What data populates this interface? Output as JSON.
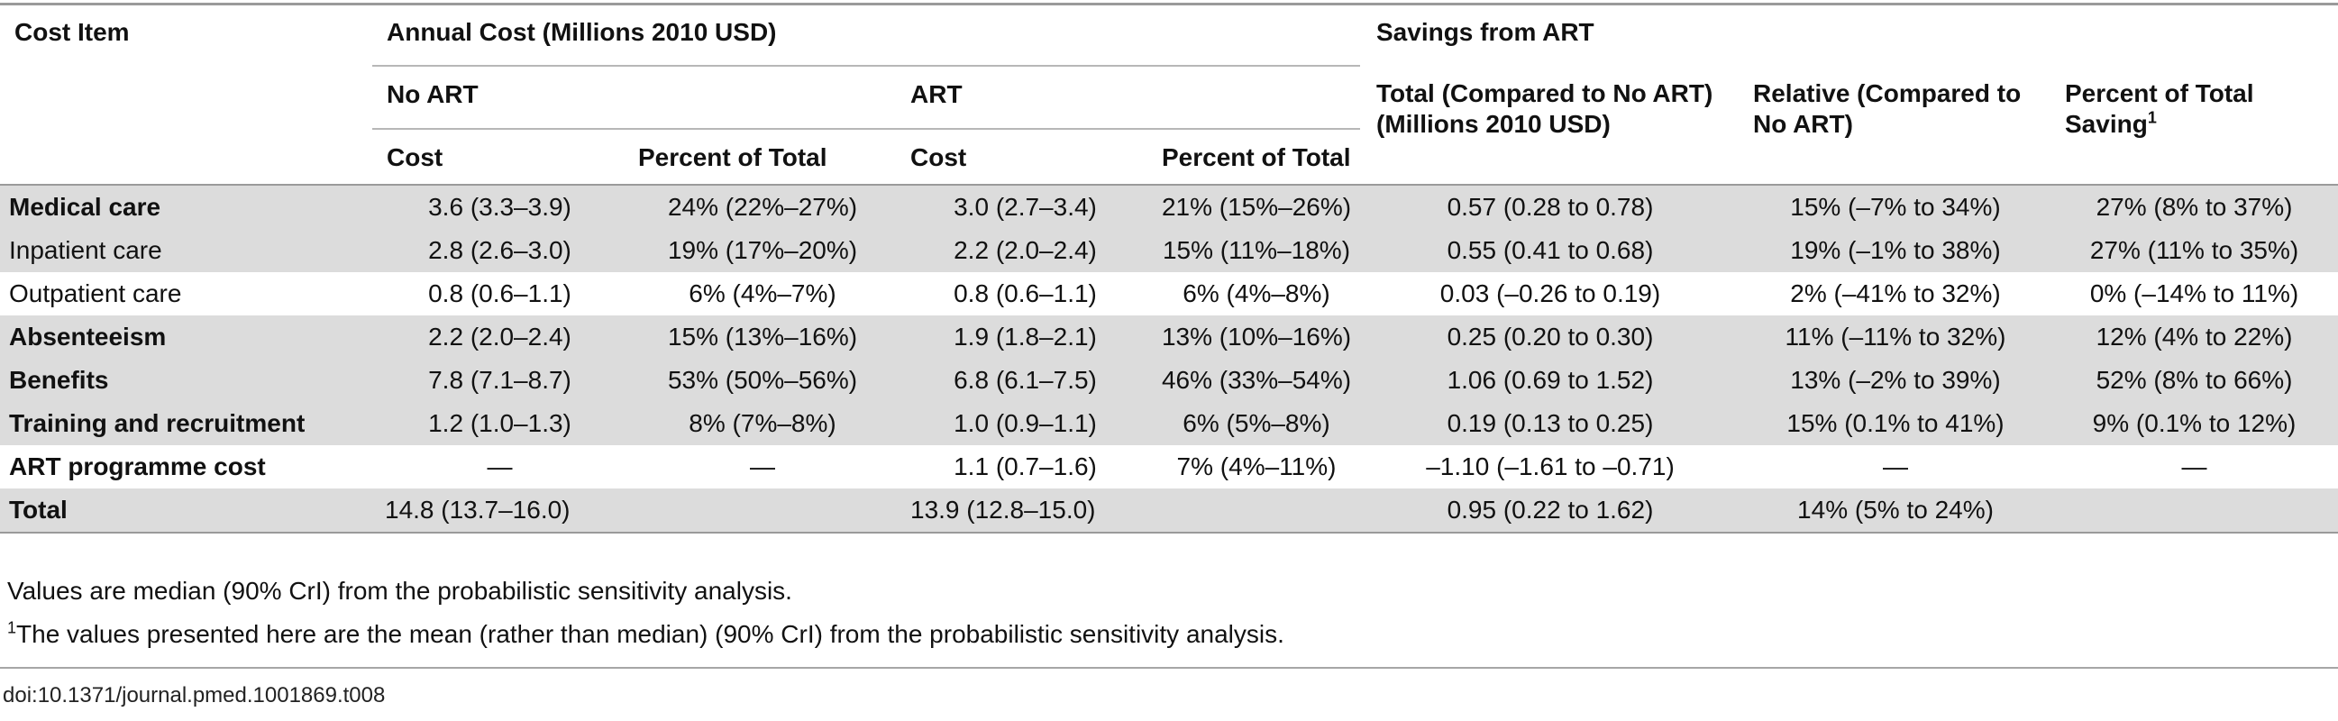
{
  "table": {
    "headers": {
      "cost_item": "Cost Item",
      "annual_cost": "Annual Cost (Millions 2010 USD)",
      "savings": "Savings from ART",
      "no_art": "No ART",
      "art": "ART",
      "cost": "Cost",
      "percent_of_total": "Percent of Total",
      "total_savings": "Total (Compared to No ART) (Millions 2010 USD)",
      "relative": "Relative (Compared to No ART)",
      "percent_of_total_saving": "Percent of Total Saving",
      "footnote_mark": "1"
    },
    "rows": [
      {
        "item": "Medical care",
        "bold": true,
        "no_art_cost": "3.6 (3.3–3.9)",
        "no_art_pct": "24% (22%–27%)",
        "art_cost": "3.0 (2.7–3.4)",
        "art_pct": "21% (15%–26%)",
        "total": "0.57 (0.28 to 0.78)",
        "relative": "15% (–7% to 34%)",
        "pct_saving": "27% (8% to 37%)"
      },
      {
        "item": "Inpatient care",
        "bold": false,
        "no_art_cost": "2.8 (2.6–3.0)",
        "no_art_pct": "19% (17%–20%)",
        "art_cost": "2.2 (2.0–2.4)",
        "art_pct": "15% (11%–18%)",
        "total": "0.55 (0.41 to 0.68)",
        "relative": "19% (–1% to 38%)",
        "pct_saving": "27% (11% to 35%)"
      },
      {
        "item": "Outpatient care",
        "bold": false,
        "no_art_cost": "0.8 (0.6–1.1)",
        "no_art_pct": "6% (4%–7%)",
        "art_cost": "0.8 (0.6–1.1)",
        "art_pct": "6% (4%–8%)",
        "total": "0.03 (–0.26 to 0.19)",
        "relative": "2% (–41% to 32%)",
        "pct_saving": "0% (–14% to 11%)"
      },
      {
        "item": "Absenteeism",
        "bold": true,
        "no_art_cost": "2.2 (2.0–2.4)",
        "no_art_pct": "15% (13%–16%)",
        "art_cost": "1.9 (1.8–2.1)",
        "art_pct": "13% (10%–16%)",
        "total": "0.25 (0.20 to 0.30)",
        "relative": "11% (–11% to 32%)",
        "pct_saving": "12% (4% to 22%)"
      },
      {
        "item": "Benefits",
        "bold": true,
        "no_art_cost": "7.8 (7.1–8.7)",
        "no_art_pct": "53% (50%–56%)",
        "art_cost": "6.8 (6.1–7.5)",
        "art_pct": "46% (33%–54%)",
        "total": "1.06 (0.69 to 1.52)",
        "relative": "13% (–2% to 39%)",
        "pct_saving": "52% (8% to 66%)"
      },
      {
        "item": "Training and recruitment",
        "bold": true,
        "no_art_cost": "1.2 (1.0–1.3)",
        "no_art_pct": "8% (7%–8%)",
        "art_cost": "1.0 (0.9–1.1)",
        "art_pct": "6% (5%–8%)",
        "total": "0.19 (0.13 to 0.25)",
        "relative": "15% (0.1% to 41%)",
        "pct_saving": "9% (0.1% to 12%)"
      },
      {
        "item": "ART programme cost",
        "bold": true,
        "no_art_cost": "—",
        "no_art_pct": "—",
        "art_cost": "1.1 (0.7–1.6)",
        "art_pct": "7% (4%–11%)",
        "total": "–1.10 (–1.61 to –0.71)",
        "relative": "—",
        "pct_saving": "—"
      },
      {
        "item": "Total",
        "bold": true,
        "no_art_cost": "14.8 (13.7–16.0)",
        "no_art_pct": "",
        "art_cost": "13.9 (12.8–15.0)",
        "art_pct": "",
        "total": "0.95 (0.22 to 1.62)",
        "relative": "14% (5% to 24%)",
        "pct_saving": ""
      }
    ]
  },
  "notes": {
    "values_note": "Values are median (90% CrI) from the probabilistic sensitivity analysis.",
    "footnote_mark": "1",
    "footnote": "The values presented here are the mean (rather than median) (90% CrI) from the probabilistic sensitivity analysis."
  },
  "doi": "doi:10.1371/journal.pmed.1001869.t008"
}
